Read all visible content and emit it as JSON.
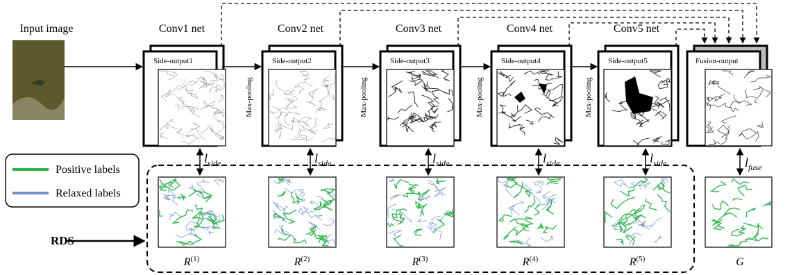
{
  "input": {
    "label": "Input image"
  },
  "stages": [
    {
      "name": "Conv1 net",
      "side_output": "Side-output1",
      "loss": {
        "base": "l",
        "sub": "side"
      },
      "result": {
        "base": "R",
        "sup": "(1)"
      }
    },
    {
      "name": "Conv2 net",
      "side_output": "Side-output2",
      "loss": {
        "base": "l",
        "sub": "side"
      },
      "result": {
        "base": "R",
        "sup": "(2)"
      }
    },
    {
      "name": "Conv3 net",
      "side_output": "Side-output3",
      "loss": {
        "base": "l",
        "sub": "side"
      },
      "result": {
        "base": "R",
        "sup": "(3)"
      }
    },
    {
      "name": "Conv4 net",
      "side_output": "Side-output4",
      "loss": {
        "base": "l",
        "sub": "side"
      },
      "result": {
        "base": "R",
        "sup": "(4)"
      }
    },
    {
      "name": "Conv5 net",
      "side_output": "Side-output5",
      "loss": {
        "base": "l",
        "sub": "side"
      },
      "result": {
        "base": "R",
        "sup": "(5)"
      }
    }
  ],
  "pooling": [
    "Max-pooling",
    "Max-pooling",
    "Max-pooling",
    "Max-pooling"
  ],
  "fusion": {
    "name": "Fusion-output",
    "loss": {
      "base": "l",
      "sub": "fuse"
    },
    "result": "G"
  },
  "legend": [
    {
      "label": "Positive labels",
      "color": "#2bb54a"
    },
    {
      "label": "Relaxed labels",
      "color": "#6f8fcf"
    }
  ],
  "rds": "RDS"
}
